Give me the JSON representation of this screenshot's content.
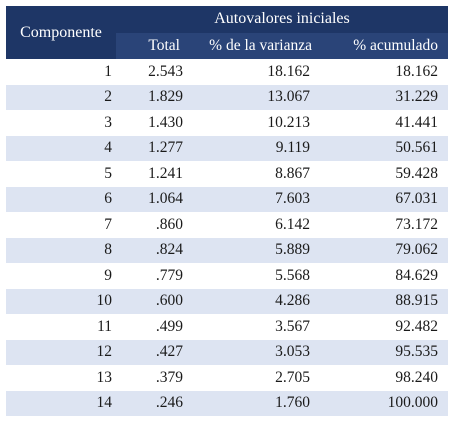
{
  "header": {
    "component_label": "Componente",
    "group_label": "Autovalores iniciales",
    "columns": [
      "Total",
      "% de la varianza",
      "% acumulado"
    ]
  },
  "rows": [
    {
      "component": "1",
      "total": "2.543",
      "variance": "18.162",
      "cumulative": "18.162"
    },
    {
      "component": "2",
      "total": "1.829",
      "variance": "13.067",
      "cumulative": "31.229"
    },
    {
      "component": "3",
      "total": "1.430",
      "variance": "10.213",
      "cumulative": "41.441"
    },
    {
      "component": "4",
      "total": "1.277",
      "variance": "9.119",
      "cumulative": "50.561"
    },
    {
      "component": "5",
      "total": "1.241",
      "variance": "8.867",
      "cumulative": "59.428"
    },
    {
      "component": "6",
      "total": "1.064",
      "variance": "7.603",
      "cumulative": "67.031"
    },
    {
      "component": "7",
      "total": ".860",
      "variance": "6.142",
      "cumulative": "73.172"
    },
    {
      "component": "8",
      "total": ".824",
      "variance": "5.889",
      "cumulative": "79.062"
    },
    {
      "component": "9",
      "total": ".779",
      "variance": "5.568",
      "cumulative": "84.629"
    },
    {
      "component": "10",
      "total": ".600",
      "variance": "4.286",
      "cumulative": "88.915"
    },
    {
      "component": "11",
      "total": ".499",
      "variance": "3.567",
      "cumulative": "92.482"
    },
    {
      "component": "12",
      "total": ".427",
      "variance": "3.053",
      "cumulative": "95.535"
    },
    {
      "component": "13",
      "total": ".379",
      "variance": "2.705",
      "cumulative": "98.240"
    },
    {
      "component": "14",
      "total": ".246",
      "variance": "1.760",
      "cumulative": "100.000"
    }
  ],
  "colors": {
    "header_bg": "#1e3666",
    "subheader_bg": "#2a4478",
    "stripe_bg": "#dde4f2",
    "text": "#1a1a1a"
  }
}
